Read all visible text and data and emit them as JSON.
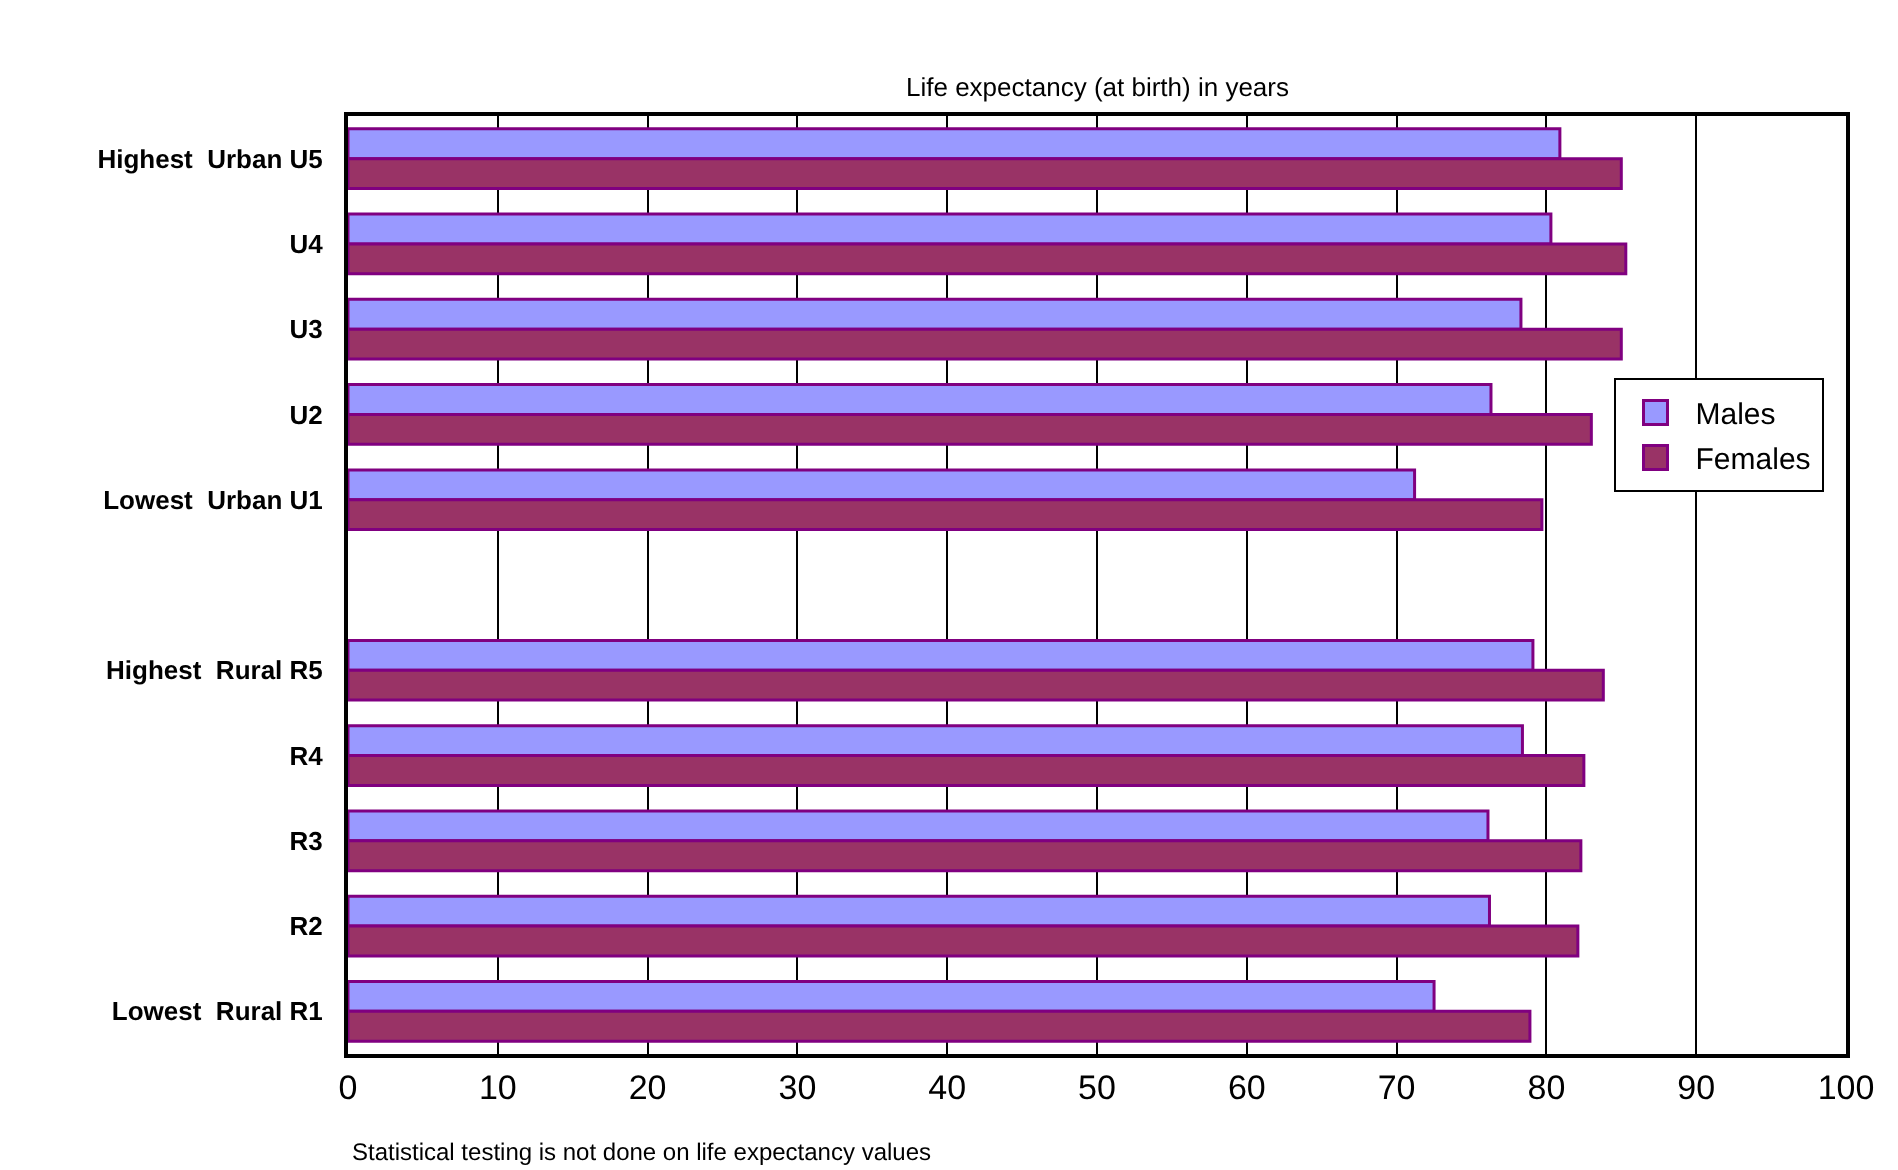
{
  "chart_data": {
    "type": "bar",
    "orientation": "horizontal",
    "subtitle": "Life expectancy (at birth) in years",
    "categories": [
      "Highest  Urban U5",
      "U4",
      "U3",
      "U2",
      "Lowest  Urban U1",
      null,
      "Highest  Rural R5",
      "R4",
      "R3",
      "R2",
      "Lowest  Rural R1"
    ],
    "series": [
      {
        "name": "Males",
        "color": "#9999ff",
        "values": [
          80.9,
          80.3,
          78.3,
          76.3,
          71.2,
          null,
          79.1,
          78.4,
          76.1,
          76.2,
          72.5
        ]
      },
      {
        "name": "Females",
        "color": "#993366",
        "values": [
          85.0,
          85.3,
          85.0,
          83.0,
          79.7,
          null,
          83.8,
          82.5,
          82.3,
          82.1,
          78.9
        ]
      }
    ],
    "xlim": [
      0,
      100
    ],
    "xticks": [
      0,
      10,
      20,
      30,
      40,
      50,
      60,
      70,
      80,
      90,
      100
    ],
    "grid": "x",
    "legend": "right",
    "annotations": [
      "Statistical testing is not done on life expectancy values"
    ]
  }
}
